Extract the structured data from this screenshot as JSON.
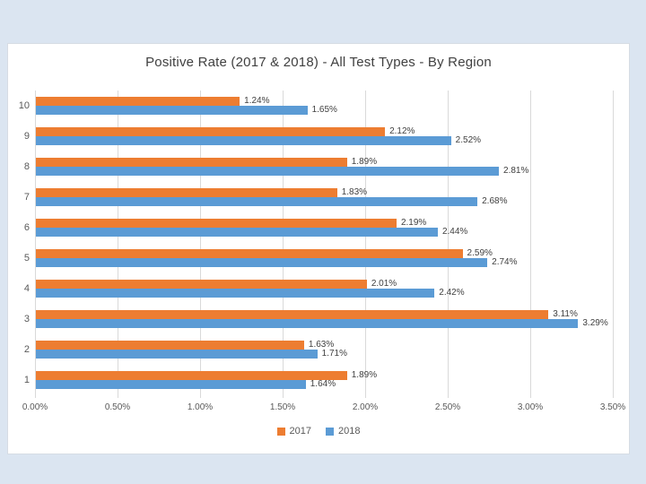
{
  "slide": {
    "background_color": "#dbe5f1",
    "panel_background_color": "#ffffff"
  },
  "chart_data": {
    "type": "bar",
    "orientation": "horizontal",
    "title": "Positive Rate (2017 & 2018) - All Test Types - By Region",
    "categories": [
      "10",
      "9",
      "8",
      "7",
      "6",
      "5",
      "4",
      "3",
      "2",
      "1"
    ],
    "series": [
      {
        "name": "2017",
        "color": "#ED7D31",
        "values": [
          1.24,
          2.12,
          1.89,
          1.83,
          2.19,
          2.59,
          2.01,
          3.11,
          1.63,
          1.89
        ],
        "data_labels": [
          "1.24%",
          "2.12%",
          "1.89%",
          "1.83%",
          "2.19%",
          "2.59%",
          "2.01%",
          "3.11%",
          "1.63%",
          "1.89%"
        ]
      },
      {
        "name": "2018",
        "color": "#5B9BD5",
        "values": [
          1.65,
          2.52,
          2.81,
          2.68,
          2.44,
          2.74,
          2.42,
          3.29,
          1.71,
          1.64
        ],
        "data_labels": [
          "1.65%",
          "2.52%",
          "2.81%",
          "2.68%",
          "2.44%",
          "2.74%",
          "2.42%",
          "3.29%",
          "1.71%",
          "1.64%"
        ]
      }
    ],
    "x_axis": {
      "min": 0,
      "max": 3.5,
      "step": 0.5,
      "tick_labels": [
        "0.00%",
        "0.50%",
        "1.00%",
        "1.50%",
        "2.00%",
        "2.50%",
        "3.00%",
        "3.50%"
      ]
    },
    "grid": true,
    "legend": {
      "position": "bottom",
      "entries": [
        "2017",
        "2018"
      ]
    },
    "gridline_color": "#d9d9d9",
    "title_color": "#404040",
    "axis_text_color": "#595959"
  }
}
